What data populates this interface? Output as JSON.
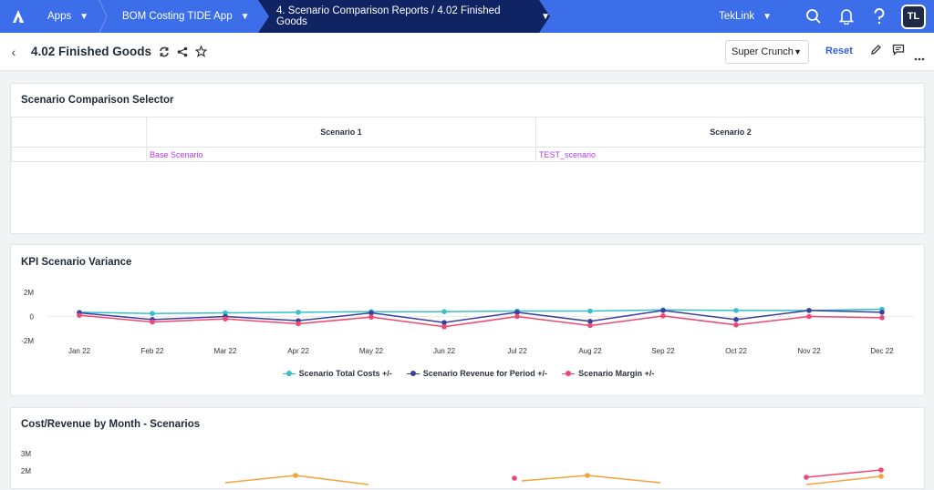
{
  "nav": {
    "apps_label": "Apps",
    "app_label": "BOM Costing TIDE App",
    "active_label": "4. Scenario Comparison Reports / 4.02 Finished Goods",
    "workspace_label": "TekLink",
    "avatar_initials": "TL"
  },
  "header": {
    "title": "4.02 Finished Goods",
    "view_select": "Super Crunch",
    "reset_label": "Reset"
  },
  "selector": {
    "title": "Scenario Comparison Selector",
    "col1": "Scenario 1",
    "col2": "Scenario 2",
    "val1": "Base Scenario",
    "val2": "TEST_scenario"
  },
  "kpi": {
    "title": "KPI Scenario Variance",
    "chart_data": {
      "type": "line",
      "categories": [
        "Jan 22",
        "Feb 22",
        "Mar 22",
        "Apr 22",
        "May 22",
        "Jun 22",
        "Jul 22",
        "Aug 22",
        "Sep 22",
        "Oct 22",
        "Nov 22",
        "Dec 22"
      ],
      "yticks": [
        "2M",
        "0",
        "-2M"
      ],
      "ylim": [
        -2,
        2
      ],
      "series": [
        {
          "name": "Scenario Total Costs +/-",
          "color": "#35c0c8",
          "values": [
            0.35,
            0.25,
            0.3,
            0.35,
            0.4,
            0.4,
            0.45,
            0.45,
            0.55,
            0.5,
            0.5,
            0.6
          ]
        },
        {
          "name": "Scenario Revenue for Period +/-",
          "color": "#3b3f9e",
          "values": [
            0.3,
            -0.25,
            0.0,
            -0.35,
            0.3,
            -0.5,
            0.35,
            -0.4,
            0.5,
            -0.25,
            0.5,
            0.35
          ]
        },
        {
          "name": "Scenario Margin +/-",
          "color": "#ef476f",
          "values": [
            0.1,
            -0.45,
            -0.2,
            -0.6,
            -0.05,
            -0.85,
            0.0,
            -0.75,
            0.05,
            -0.7,
            0.0,
            -0.1
          ]
        }
      ]
    }
  },
  "cost": {
    "title": "Cost/Revenue by Month - Scenarios",
    "chart_data": {
      "type": "line",
      "yticks": [
        "3M",
        "2M"
      ]
    }
  }
}
